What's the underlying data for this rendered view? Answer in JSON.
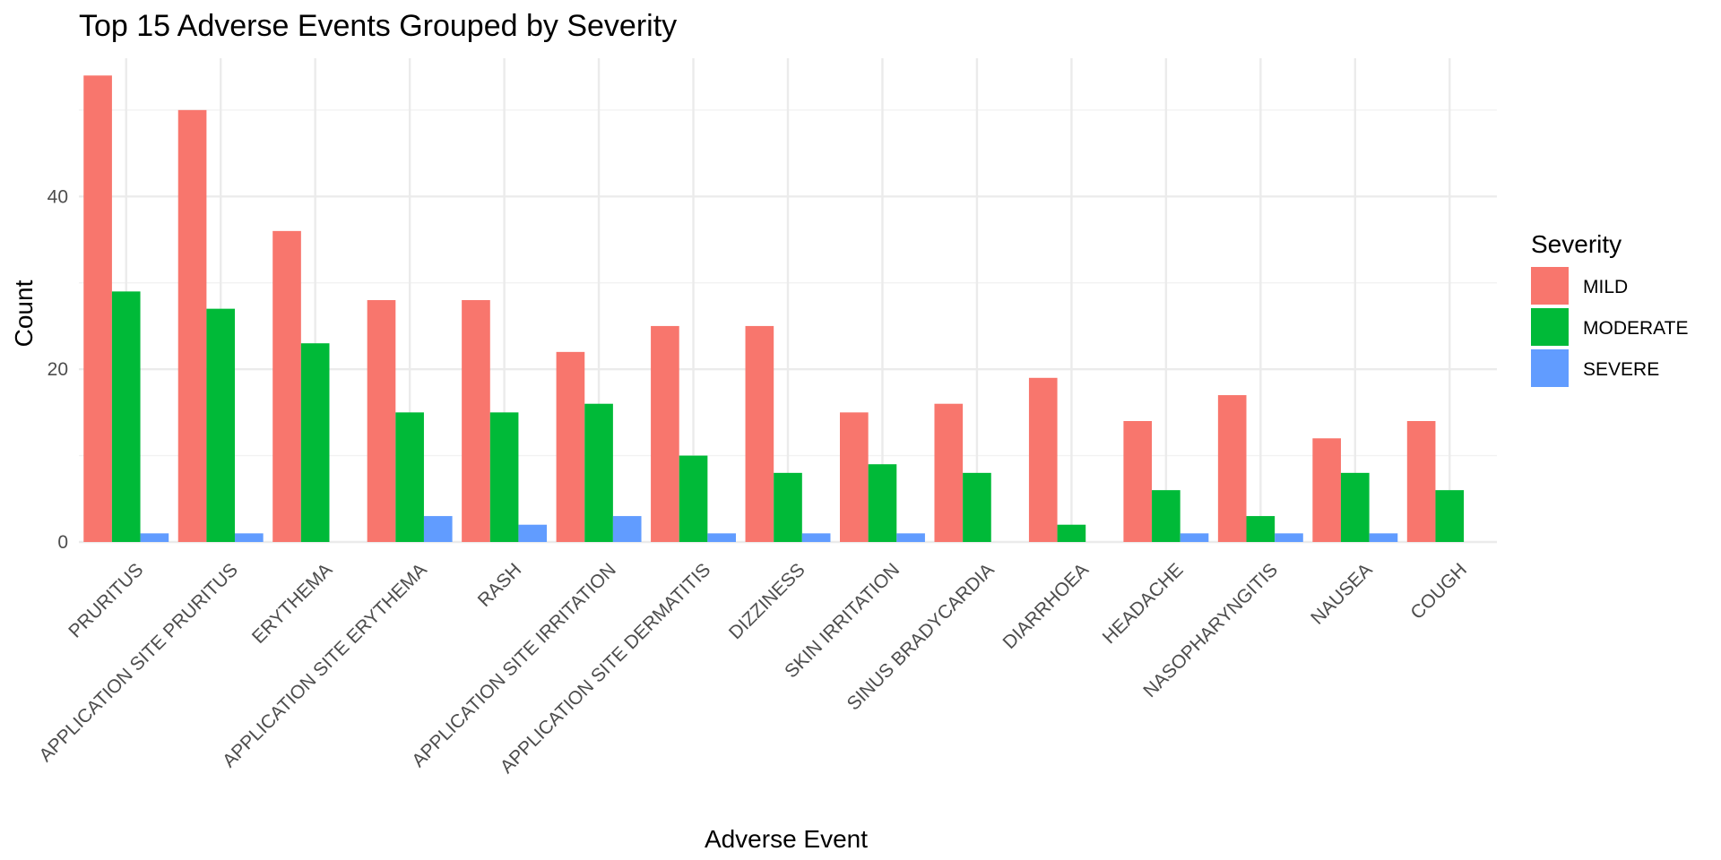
{
  "chart_data": {
    "type": "bar",
    "title": "Top 15 Adverse Events Grouped by Severity",
    "xlabel": "Adverse Event",
    "ylabel": "Count",
    "ylim": [
      0,
      56
    ],
    "yticks": [
      0,
      20,
      40
    ],
    "grid": true,
    "legend": {
      "title": "Severity",
      "position": "right"
    },
    "categories": [
      "PRURITUS",
      "APPLICATION SITE PRURITUS",
      "ERYTHEMA",
      "APPLICATION SITE ERYTHEMA",
      "RASH",
      "APPLICATION SITE IRRITATION",
      "APPLICATION SITE DERMATITIS",
      "DIZZINESS",
      "SKIN IRRITATION",
      "SINUS BRADYCARDIA",
      "DIARRHOEA",
      "HEADACHE",
      "NASOPHARYNGITIS",
      "NAUSEA",
      "COUGH"
    ],
    "series": [
      {
        "name": "MILD",
        "color": "#F8766D",
        "values": [
          54,
          50,
          36,
          28,
          28,
          22,
          25,
          25,
          15,
          16,
          19,
          14,
          17,
          12,
          14
        ]
      },
      {
        "name": "MODERATE",
        "color": "#00BA38",
        "values": [
          29,
          27,
          23,
          15,
          15,
          16,
          10,
          8,
          9,
          8,
          2,
          6,
          3,
          8,
          6
        ]
      },
      {
        "name": "SEVERE",
        "color": "#619CFF",
        "values": [
          1,
          1,
          null,
          3,
          2,
          3,
          1,
          1,
          1,
          null,
          null,
          1,
          1,
          1,
          null
        ]
      }
    ]
  }
}
